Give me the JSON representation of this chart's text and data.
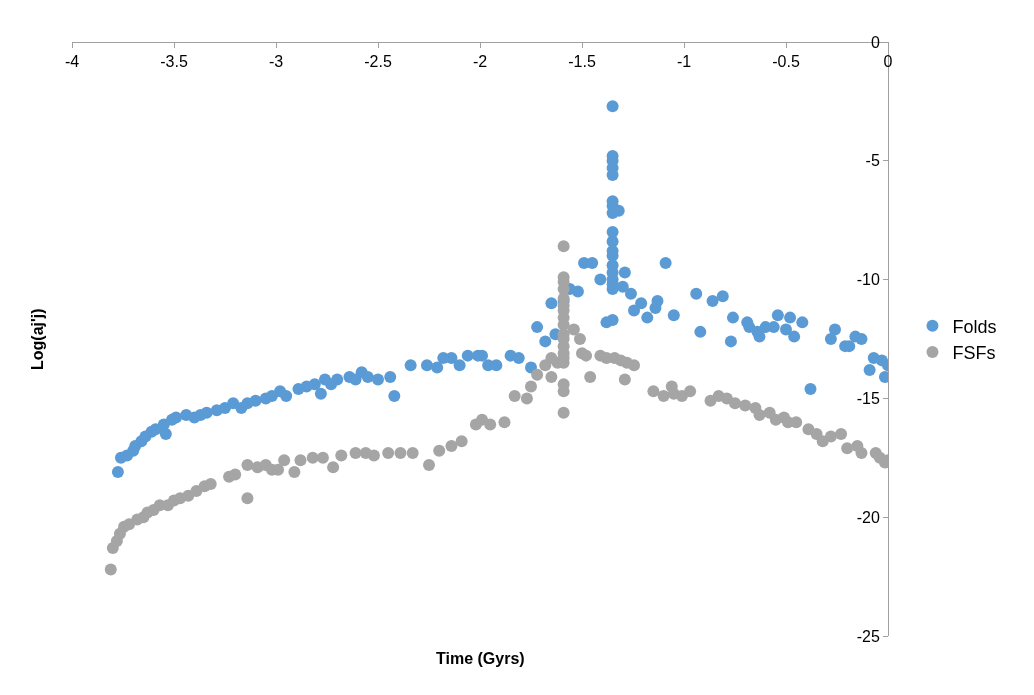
{
  "chart_data": {
    "type": "scatter",
    "xlabel": "Time (Gyrs)",
    "ylabel": "Log(aj'j)",
    "xlim": [
      -4,
      0
    ],
    "xticks": [
      -4,
      -3.5,
      -3,
      -2.5,
      -2,
      -1.5,
      -1,
      -0.5,
      0
    ],
    "ylim": [
      -25,
      0
    ],
    "yticks": [
      0,
      -5,
      -10,
      -15,
      -20,
      -25
    ],
    "legend": "right",
    "marker": "circle",
    "series": [
      {
        "name": "Folds",
        "color": "#5b9bd5",
        "x": [
          -3.775,
          -3.76,
          -3.73,
          -3.7,
          -3.69,
          -3.66,
          -3.64,
          -3.61,
          -3.59,
          -3.55,
          -3.54,
          -3.51,
          -3.49,
          -3.44,
          -3.4,
          -3.37,
          -3.34,
          -3.29,
          -3.25,
          -3.21,
          -3.17,
          -3.14,
          -3.1,
          -3.05,
          -3.02,
          -2.98,
          -2.95,
          -2.89,
          -2.85,
          -2.81,
          -2.78,
          -2.76,
          -2.73,
          -2.7,
          -2.64,
          -2.61,
          -2.58,
          -2.55,
          -2.5,
          -2.44,
          -2.42,
          -2.34,
          -2.26,
          -2.21,
          -2.18,
          -2.14,
          -2.1,
          -2.06,
          -2.01,
          -1.99,
          -1.96,
          -1.92,
          -1.85,
          -1.81,
          -1.75,
          -1.72,
          -1.68,
          -1.65,
          -1.63,
          -1.59,
          -1.56,
          -1.52,
          -1.49,
          -1.45,
          -1.41,
          -1.38,
          -1.35,
          -1.35,
          -1.35,
          -1.35,
          -1.35,
          -1.35,
          -1.35,
          -1.35,
          -1.35,
          -1.35,
          -1.35,
          -1.35,
          -1.35,
          -1.35,
          -1.35,
          -1.35,
          -1.35,
          -1.35,
          -1.32,
          -1.29,
          -1.3,
          -1.26,
          -1.245,
          -1.21,
          -1.18,
          -1.14,
          -1.13,
          -1.09,
          -1.05,
          -0.94,
          -0.92,
          -0.86,
          -0.81,
          -0.77,
          -0.76,
          -0.69,
          -0.68,
          -0.64,
          -0.63,
          -0.6,
          -0.56,
          -0.54,
          -0.5,
          -0.48,
          -0.46,
          -0.42,
          -0.38,
          -0.28,
          -0.26,
          -0.21,
          -0.19,
          -0.16,
          -0.13,
          -0.09,
          -0.07,
          -0.03,
          -0.015,
          0
        ],
        "values": [
          -18.1,
          -17.5,
          -17.4,
          -17.2,
          -17.0,
          -16.8,
          -16.6,
          -16.4,
          -16.3,
          -16.1,
          -16.5,
          -15.9,
          -15.8,
          -15.7,
          -15.8,
          -15.7,
          -15.6,
          -15.5,
          -15.4,
          -15.2,
          -15.4,
          -15.2,
          -15.1,
          -15.0,
          -14.9,
          -14.7,
          -14.9,
          -14.6,
          -14.5,
          -14.4,
          -14.8,
          -14.2,
          -14.4,
          -14.2,
          -14.1,
          -14.2,
          -13.9,
          -14.1,
          -14.2,
          -14.1,
          -14.9,
          -13.6,
          -13.6,
          -13.7,
          -13.3,
          -13.3,
          -13.6,
          -13.2,
          -13.2,
          -13.2,
          -13.6,
          -13.6,
          -13.2,
          -13.3,
          -13.7,
          -12.0,
          -12.6,
          -11.0,
          -12.3,
          -10.9,
          -10.4,
          -10.5,
          -9.3,
          -9.3,
          -10.0,
          -11.8,
          -11.7,
          -2.7,
          -4.8,
          -5.0,
          -5.3,
          -5.6,
          -6.7,
          -6.9,
          -7.2,
          -8.0,
          -8.4,
          -8.8,
          -9.0,
          -9.4,
          -9.7,
          -10.0,
          -10.2,
          -10.4,
          -7.1,
          -9.7,
          -10.3,
          -10.6,
          -11.3,
          -11.0,
          -11.6,
          -11.2,
          -10.9,
          -9.3,
          -11.5,
          -10.6,
          -12.2,
          -10.9,
          -10.7,
          -12.6,
          -11.6,
          -11.8,
          -12.0,
          -12.2,
          -12.4,
          -12.0,
          -12.0,
          -11.5,
          -12.1,
          -11.6,
          -12.4,
          -11.8,
          -14.6,
          -12.5,
          -12.1,
          -12.8,
          -12.8,
          -12.4,
          -12.5,
          -13.8,
          -13.3,
          -13.4,
          -14.1,
          -13.6
        ]
      },
      {
        "name": "FSFs",
        "color": "#a5a5a5",
        "x": [
          -3.81,
          -3.8,
          -3.78,
          -3.765,
          -3.745,
          -3.72,
          -3.68,
          -3.65,
          -3.63,
          -3.6,
          -3.57,
          -3.53,
          -3.5,
          -3.47,
          -3.43,
          -3.39,
          -3.35,
          -3.32,
          -3.23,
          -3.2,
          -3.14,
          -3.14,
          -3.09,
          -3.05,
          -3.02,
          -2.99,
          -2.96,
          -2.91,
          -2.88,
          -2.82,
          -2.77,
          -2.72,
          -2.68,
          -2.61,
          -2.56,
          -2.52,
          -2.45,
          -2.39,
          -2.33,
          -2.25,
          -2.2,
          -2.14,
          -2.09,
          -2.02,
          -1.99,
          -1.95,
          -1.88,
          -1.83,
          -1.77,
          -1.75,
          -1.72,
          -1.68,
          -1.65,
          -1.62,
          -1.59,
          -1.59,
          -1.59,
          -1.59,
          -1.59,
          -1.59,
          -1.59,
          -1.59,
          -1.59,
          -1.59,
          -1.59,
          -1.59,
          -1.59,
          -1.59,
          -1.59,
          -1.59,
          -1.59,
          -1.59,
          -1.65,
          -1.54,
          -1.51,
          -1.5,
          -1.48,
          -1.46,
          -1.41,
          -1.38,
          -1.34,
          -1.31,
          -1.29,
          -1.28,
          -1.245,
          -1.15,
          -1.1,
          -1.06,
          -1.05,
          -1.01,
          -0.97,
          -0.87,
          -0.83,
          -0.79,
          -0.75,
          -0.7,
          -0.65,
          -0.63,
          -0.58,
          -0.55,
          -0.51,
          -0.49,
          -0.45,
          -0.39,
          -0.35,
          -0.32,
          -0.28,
          -0.23,
          -0.2,
          -0.15,
          -0.13,
          -0.06,
          -0.04,
          -0.015,
          0
        ],
        "values": [
          -22.2,
          -21.3,
          -21.0,
          -20.7,
          -20.4,
          -20.3,
          -20.1,
          -20.0,
          -19.8,
          -19.7,
          -19.5,
          -19.5,
          -19.3,
          -19.2,
          -19.1,
          -18.9,
          -18.7,
          -18.6,
          -18.3,
          -18.2,
          -17.8,
          -19.2,
          -17.9,
          -17.8,
          -18.0,
          -18.0,
          -17.6,
          -18.1,
          -17.6,
          -17.5,
          -17.5,
          -17.9,
          -17.4,
          -17.3,
          -17.3,
          -17.4,
          -17.3,
          -17.3,
          -17.3,
          -17.8,
          -17.2,
          -17.0,
          -16.8,
          -16.1,
          -15.9,
          -16.1,
          -16.0,
          -14.9,
          -15.0,
          -14.5,
          -14.0,
          -13.6,
          -13.3,
          -13.5,
          -8.6,
          -9.9,
          -10.1,
          -10.4,
          -10.8,
          -11.1,
          -11.3,
          -11.6,
          -11.9,
          -12.3,
          -12.5,
          -12.8,
          -13.1,
          -13.3,
          -13.5,
          -14.4,
          -14.7,
          -15.6,
          -14.1,
          -12.1,
          -12.5,
          -13.1,
          -13.2,
          -14.1,
          -13.2,
          -13.3,
          -13.3,
          -13.4,
          -14.2,
          -13.5,
          -13.6,
          -14.7,
          -14.9,
          -14.5,
          -14.8,
          -14.9,
          -14.7,
          -15.1,
          -14.9,
          -15.0,
          -15.2,
          -15.3,
          -15.4,
          -15.7,
          -15.6,
          -15.9,
          -15.8,
          -16.0,
          -16.0,
          -16.3,
          -16.5,
          -16.8,
          -16.6,
          -16.5,
          -17.1,
          -17.0,
          -17.3,
          -17.3,
          -17.5,
          -17.7,
          -17.6
        ]
      }
    ]
  }
}
